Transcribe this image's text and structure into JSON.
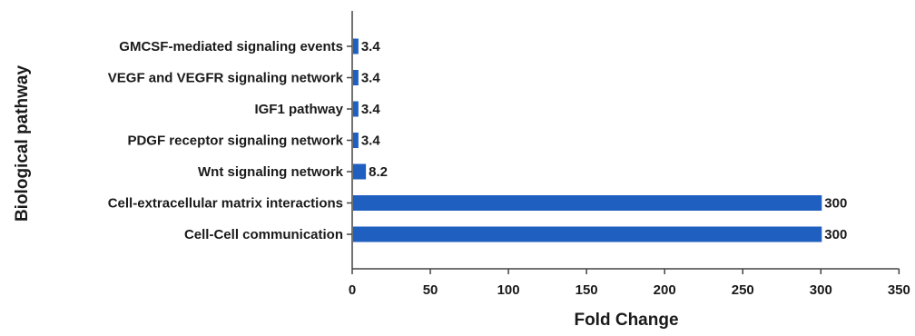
{
  "chart_data": {
    "type": "bar",
    "orientation": "horizontal",
    "title": "",
    "xlabel": "Fold Change",
    "ylabel": "Biological pathway",
    "categories": [
      "GMCSF-mediated signaling events",
      "VEGF and VEGFR signaling network",
      "IGF1 pathway",
      "PDGF receptor signaling network",
      "Wnt signaling network",
      "Cell-extracellular matrix interactions",
      "Cell-Cell communication"
    ],
    "values": [
      3.4,
      3.4,
      3.4,
      3.4,
      8.2,
      300,
      300
    ],
    "value_labels": [
      "3.4",
      "3.4",
      "3.4",
      "3.4",
      "8.2",
      "300",
      "300"
    ],
    "xlim": [
      0,
      350
    ],
    "xticks": [
      "0",
      "50",
      "100",
      "150",
      "200",
      "250",
      "300",
      "350"
    ],
    "bar_color": "#1f5fbf",
    "grid": false,
    "legend": "none"
  }
}
